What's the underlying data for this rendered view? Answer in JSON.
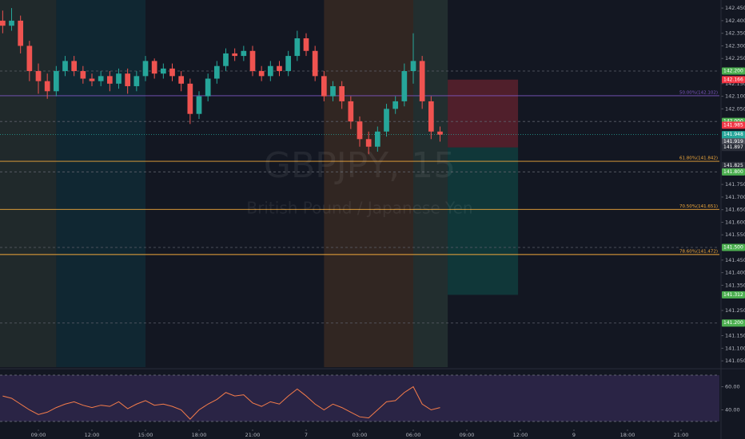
{
  "chart_data": {
    "type": "candlestick",
    "title": "GBPJPY, 15",
    "subtitle": "British Pound / Japanese Yen",
    "up_color": "#26a69a",
    "down_color": "#ef5350",
    "x": [
      7,
      7.5,
      8,
      8.5,
      9,
      9.5,
      10,
      10.5,
      11,
      11.5,
      12,
      12.5,
      13,
      13.5,
      14,
      14.5,
      15,
      15.5,
      16,
      16.5,
      17,
      17.5,
      18,
      18.5,
      19,
      19.5,
      20,
      20.5,
      21,
      21.5,
      22,
      22.5,
      23,
      23.5,
      24,
      24.5,
      25,
      25.5,
      26,
      26.5,
      27,
      27.5,
      28,
      28.5,
      29,
      29.5,
      30,
      30.5,
      31,
      31.5
    ],
    "candles": [
      [
        142.4,
        142.44,
        142.35,
        142.38
      ],
      [
        142.38,
        142.45,
        142.36,
        142.4
      ],
      [
        142.4,
        142.42,
        142.27,
        142.3
      ],
      [
        142.3,
        142.32,
        142.16,
        142.2
      ],
      [
        142.2,
        142.23,
        142.11,
        142.16
      ],
      [
        142.16,
        142.19,
        142.09,
        142.12
      ],
      [
        142.12,
        142.22,
        142.1,
        142.2
      ],
      [
        142.2,
        142.26,
        142.18,
        142.24
      ],
      [
        142.24,
        142.26,
        142.18,
        142.2
      ],
      [
        142.2,
        142.22,
        142.15,
        142.17
      ],
      [
        142.17,
        142.19,
        142.14,
        142.16
      ],
      [
        142.16,
        142.2,
        142.14,
        142.18
      ],
      [
        142.18,
        142.2,
        142.12,
        142.15
      ],
      [
        142.15,
        142.21,
        142.13,
        142.19
      ],
      [
        142.19,
        142.21,
        142.11,
        142.14
      ],
      [
        142.14,
        142.2,
        142.12,
        142.18
      ],
      [
        142.18,
        142.26,
        142.16,
        142.24
      ],
      [
        142.24,
        142.25,
        142.17,
        142.19
      ],
      [
        142.19,
        142.23,
        142.17,
        142.21
      ],
      [
        142.21,
        142.23,
        142.16,
        142.18
      ],
      [
        142.18,
        142.2,
        142.12,
        142.15
      ],
      [
        142.15,
        142.17,
        141.99,
        142.03
      ],
      [
        142.03,
        142.12,
        142.01,
        142.1
      ],
      [
        142.1,
        142.19,
        142.08,
        142.17
      ],
      [
        142.17,
        142.24,
        142.15,
        142.22
      ],
      [
        142.22,
        142.29,
        142.2,
        142.27
      ],
      [
        142.27,
        142.29,
        142.24,
        142.26
      ],
      [
        142.26,
        142.3,
        142.24,
        142.28
      ],
      [
        142.28,
        142.3,
        142.18,
        142.2
      ],
      [
        142.2,
        142.22,
        142.16,
        142.18
      ],
      [
        142.18,
        142.24,
        142.16,
        142.22
      ],
      [
        142.22,
        142.24,
        142.18,
        142.2
      ],
      [
        142.2,
        142.28,
        142.18,
        142.26
      ],
      [
        142.26,
        142.36,
        142.24,
        142.33
      ],
      [
        142.33,
        142.35,
        142.26,
        142.28
      ],
      [
        142.28,
        142.3,
        142.16,
        142.18
      ],
      [
        142.18,
        142.2,
        142.08,
        142.1
      ],
      [
        142.1,
        142.16,
        142.08,
        142.14
      ],
      [
        142.14,
        142.16,
        142.05,
        142.08
      ],
      [
        142.08,
        142.1,
        141.97,
        142.0
      ],
      [
        142.0,
        142.02,
        141.9,
        141.93
      ],
      [
        141.93,
        141.96,
        141.87,
        141.9
      ],
      [
        141.9,
        141.98,
        141.88,
        141.96
      ],
      [
        141.96,
        142.07,
        141.94,
        142.05
      ],
      [
        142.05,
        142.1,
        142.03,
        142.08
      ],
      [
        142.08,
        142.23,
        142.06,
        142.2
      ],
      [
        142.2,
        142.35,
        142.15,
        142.24
      ],
      [
        142.24,
        142.26,
        142.05,
        142.08
      ],
      [
        142.08,
        142.1,
        141.93,
        141.96
      ],
      [
        141.96,
        141.98,
        141.92,
        141.948
      ]
    ],
    "xlim": [
      6.85,
      47.15
    ],
    "ylim": [
      141.025,
      142.482
    ],
    "xticks": [
      {
        "value": 9,
        "label": "09:00"
      },
      {
        "value": 12,
        "label": "12:00"
      },
      {
        "value": 15,
        "label": "15:00"
      },
      {
        "value": 18,
        "label": "18:00"
      },
      {
        "value": 21,
        "label": "21:00"
      },
      {
        "value": 24,
        "label": "7"
      },
      {
        "value": 27,
        "label": "03:00"
      },
      {
        "value": 30,
        "label": "06:00"
      },
      {
        "value": 33,
        "label": "09:00"
      },
      {
        "value": 36,
        "label": "12:00"
      },
      {
        "value": 39,
        "label": "9"
      },
      {
        "value": 42,
        "label": "18:00"
      },
      {
        "value": 45,
        "label": "21:00"
      }
    ],
    "yticks": [
      {
        "value": 142.45,
        "label": "142.450"
      },
      {
        "value": 142.4,
        "label": "142.400"
      },
      {
        "value": 142.35,
        "label": "142.350"
      },
      {
        "value": 142.3,
        "label": "142.300"
      },
      {
        "value": 142.25,
        "label": "142.250"
      },
      {
        "value": 142.15,
        "label": "142.150"
      },
      {
        "value": 142.1,
        "label": "142.100"
      },
      {
        "value": 142.05,
        "label": "142.050"
      },
      {
        "value": 141.75,
        "label": "141.750"
      },
      {
        "value": 141.7,
        "label": "141.700"
      },
      {
        "value": 141.65,
        "label": "141.650"
      },
      {
        "value": 141.6,
        "label": "141.600"
      },
      {
        "value": 141.55,
        "label": "141.550"
      },
      {
        "value": 141.45,
        "label": "141.450"
      },
      {
        "value": 141.4,
        "label": "141.400"
      },
      {
        "value": 141.35,
        "label": "141.350"
      },
      {
        "value": 141.25,
        "label": "141.250"
      },
      {
        "value": 141.15,
        "label": "141.150"
      },
      {
        "value": 141.1,
        "label": "141.100"
      },
      {
        "value": 141.05,
        "label": "141.050"
      }
    ],
    "hlines": [
      142.2,
      142.0,
      141.8,
      141.5,
      141.2
    ],
    "levels": [
      {
        "value": 142.102,
        "label": "50.00%(142.102)",
        "color": "#7e57c2"
      },
      {
        "value": 141.842,
        "label": "61.80%(141.842)",
        "color": "#f2a93b"
      },
      {
        "value": 141.651,
        "label": "70.50%(141.651)",
        "color": "#f2a93b"
      },
      {
        "value": 141.472,
        "label": "78.60%(141.472)",
        "color": "#f2a93b"
      }
    ],
    "price_labels": [
      {
        "value": 142.2,
        "label": "142.200",
        "color": "#4caf50"
      },
      {
        "value": 142.166,
        "label": "142.166",
        "color": "#f23645"
      },
      {
        "value": 142.0,
        "label": "142.000",
        "color": "#4caf50"
      },
      {
        "value": 141.985,
        "label": "141.985",
        "color": "#f23645"
      },
      {
        "value": 141.948,
        "label": "141.948",
        "color": "#26a69a"
      },
      {
        "value": 141.919,
        "label": "141.919",
        "color": "#50535e"
      },
      {
        "value": 141.897,
        "label": "141.897",
        "color": "#2a2e39"
      },
      {
        "value": 141.825,
        "label": "141.825",
        "color": "#2a2e39"
      },
      {
        "value": 141.8,
        "label": "141.800",
        "color": "#4caf50"
      },
      {
        "value": 141.5,
        "label": "141.500",
        "color": "#4caf50"
      },
      {
        "value": 141.312,
        "label": "141.312",
        "color": "#4caf50"
      },
      {
        "value": 141.2,
        "label": "141.200",
        "color": "#4caf50"
      }
    ],
    "countdown": "02:31",
    "position": {
      "x": [
        31.93,
        35.87
      ],
      "stop": 142.166,
      "entry": 141.897,
      "target": 141.312
    },
    "sessions": [
      {
        "x": [
          6.85,
          10
        ],
        "color": "rgba(120,160,110,0.13)"
      },
      {
        "x": [
          10,
          15
        ],
        "color": "rgba(0,150,160,0.13)"
      },
      {
        "x": [
          25,
          30
        ],
        "color": "rgba(255,140,40,0.13)"
      },
      {
        "x": [
          30,
          31.93
        ],
        "color": "rgba(120,170,120,0.16)"
      }
    ],
    "rsi": {
      "color": "#f57c4a",
      "values": [
        52,
        50,
        45,
        40,
        36,
        38,
        42,
        45,
        47,
        44,
        42,
        44,
        43,
        47,
        41,
        45,
        48,
        44,
        45,
        43,
        40,
        32,
        40,
        45,
        49,
        55,
        52,
        53,
        46,
        43,
        47,
        45,
        52,
        58,
        52,
        45,
        40,
        45,
        42,
        38,
        34,
        33,
        40,
        47,
        48,
        55,
        60,
        45,
        40,
        42
      ],
      "ylim": [
        25.17,
        73.45
      ],
      "yticks": [
        {
          "value": 60,
          "label": "60.00"
        },
        {
          "value": 40,
          "label": "40.00"
        }
      ],
      "bands": [
        70,
        30
      ]
    }
  }
}
